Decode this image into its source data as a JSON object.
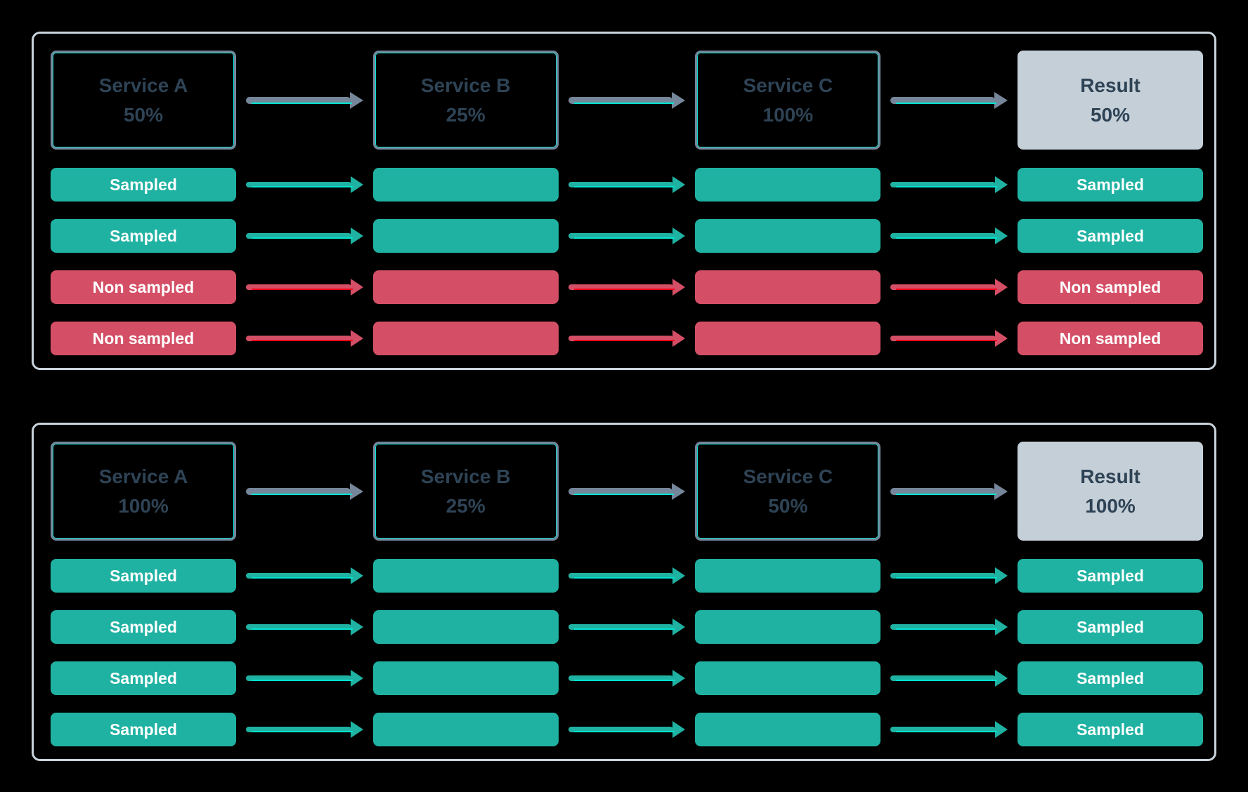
{
  "colors": {
    "bg": "#000000",
    "panel_border": "#C9D3DB",
    "node_border": "#76869A",
    "node_text": "#2E4355",
    "accent_cyan": "#00E3CF",
    "teal": "#1FB2A2",
    "red": "#D44F66",
    "red_bright": "#F20019",
    "gray_arrow": "#76869A",
    "result_fill": "#C5CFD8",
    "pill_text": "#FFFFFF"
  },
  "panels": [
    {
      "name": "top-flow-panel",
      "services": [
        {
          "label": "Service A",
          "value": "50%",
          "kind": "service"
        },
        {
          "label": "Service B",
          "value": "25%",
          "kind": "service"
        },
        {
          "label": "Service C",
          "value": "100%",
          "kind": "service"
        },
        {
          "label": "Result",
          "value": "50%",
          "kind": "result"
        }
      ],
      "rows": [
        {
          "type": "sampled",
          "start_label": "Sampled",
          "end_label": "Sampled"
        },
        {
          "type": "sampled",
          "start_label": "Sampled",
          "end_label": "Sampled"
        },
        {
          "type": "non_sampled",
          "start_label": "Non sampled",
          "end_label": "Non sampled"
        },
        {
          "type": "non_sampled",
          "start_label": "Non sampled",
          "end_label": "Non sampled"
        }
      ]
    },
    {
      "name": "bottom-flow-panel",
      "services": [
        {
          "label": "Service A",
          "value": "100%",
          "kind": "service"
        },
        {
          "label": "Service B",
          "value": "25%",
          "kind": "service"
        },
        {
          "label": "Service C",
          "value": "50%",
          "kind": "service"
        },
        {
          "label": "Result",
          "value": "100%",
          "kind": "result"
        }
      ],
      "rows": [
        {
          "type": "sampled",
          "start_label": "Sampled",
          "end_label": "Sampled"
        },
        {
          "type": "sampled",
          "start_label": "Sampled",
          "end_label": "Sampled"
        },
        {
          "type": "sampled",
          "start_label": "Sampled",
          "end_label": "Sampled"
        },
        {
          "type": "sampled",
          "start_label": "Sampled",
          "end_label": "Sampled"
        }
      ]
    }
  ]
}
